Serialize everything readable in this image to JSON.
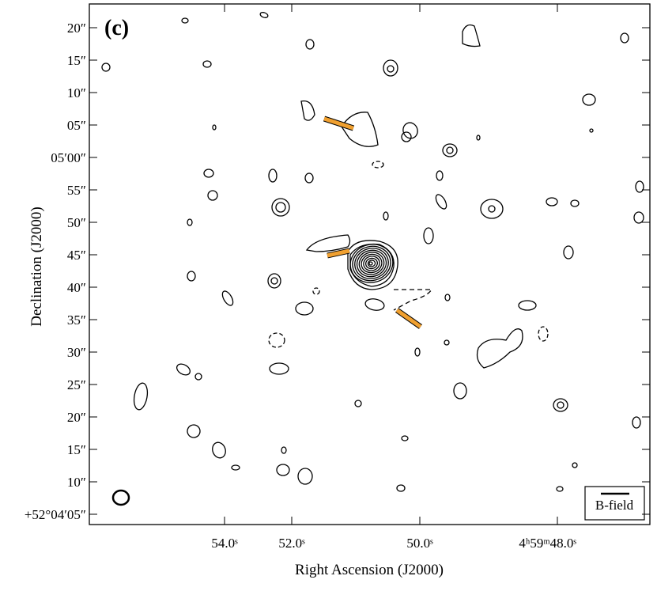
{
  "panel_label": "(c)",
  "x_axis": {
    "label": "Right Ascension (J2000)",
    "ticks": [
      "54.0ˢ",
      "52.0ˢ",
      "50.0ˢ",
      "4ʰ59ᵐ48.0ˢ"
    ]
  },
  "y_axis": {
    "label": "Declination (J2000)",
    "ticks": [
      "20″",
      "15″",
      "10″",
      "05″",
      "05′00″",
      "55″",
      "50″",
      "45″",
      "40″",
      "35″",
      "30″",
      "25″",
      "20″",
      "15″",
      "10″",
      "+52°04′05″"
    ]
  },
  "legend": "B-field"
}
